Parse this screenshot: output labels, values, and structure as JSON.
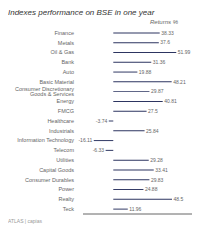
{
  "chart_data": {
    "type": "bar",
    "orientation": "horizontal",
    "title": "Indexes performance on BSE in one year",
    "subtitle": "Returns %",
    "annotations": [
      "ATLAS | capias"
    ],
    "categories": [
      "Finance",
      "Metals",
      "Oil & Gas",
      "Bank",
      "Auto",
      "Basic Material",
      "Consumer Discretionary Goods & Services",
      "Energy",
      "FMCG",
      "Healthcare",
      "Industrials",
      "Information Technology",
      "Telecom",
      "Utilities",
      "Capital Goods",
      "Consumer Durables",
      "Power",
      "Realty",
      "Teck"
    ],
    "values": [
      38.33,
      37.6,
      51.99,
      31.36,
      19.88,
      48.21,
      29.87,
      40.81,
      27.5,
      -3.74,
      25.84,
      -16.11,
      -6.33,
      29.28,
      33.41,
      29.83,
      24.88,
      48.5,
      11.96
    ],
    "color": "#2d3561",
    "xlim": [
      -25,
      65
    ],
    "grid": false,
    "data_labels": true,
    "tick_labels": "y"
  }
}
